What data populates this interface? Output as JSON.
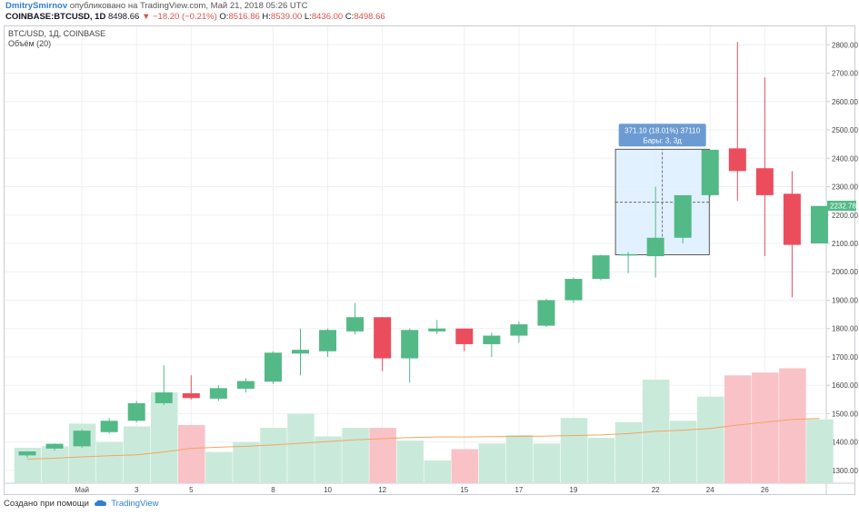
{
  "header": {
    "author": "DmitrySmirnov",
    "published": "опубликовано на TradingView.com, Май 21, 2018 05:26 UTC",
    "symbol": "COINBASE:BTCUSD, 1D",
    "price": "8498.66",
    "change": "−18.20 (−0.21%)",
    "o_label": "O:",
    "o_value": "8516.86",
    "h_label": "H:",
    "h_value": "8539.00",
    "l_label": "L:",
    "l_value": "8436.00",
    "c_label": "C:",
    "c_value": "8498.66"
  },
  "legend": {
    "title": "BTC/USD, 1Д, COINBASE",
    "volume": "Объём (20)"
  },
  "footer": {
    "created": "Создано при помощи",
    "brand": "TradingView",
    "logo_icon": "tradingview-cloud-icon"
  },
  "colors": {
    "up": "#53b987",
    "down": "#eb4d5c",
    "volume_up": "#c9eadb",
    "volume_down": "#f9c2c7",
    "ma": "#f4a460",
    "measure_fill": "#ddeeff",
    "measure_label": "#6b9bd2",
    "price_tag": "#53b987"
  },
  "measure": {
    "line1": "371.10 (18.01%) 37110",
    "line2": "Бары: 3, 3д"
  },
  "chart_data": {
    "type": "candlestick",
    "y_axis_ticks": [
      1300,
      1400,
      1500,
      1600,
      1700,
      1800,
      1900,
      2000,
      2100,
      2200,
      2300,
      2400,
      2500,
      2600,
      2700,
      2800
    ],
    "ylim": [
      1255,
      2865
    ],
    "x_tick_labels": [
      {
        "index": 2,
        "label": "Май"
      },
      {
        "index": 4,
        "label": "3"
      },
      {
        "index": 6,
        "label": "5"
      },
      {
        "index": 9,
        "label": "8"
      },
      {
        "index": 11,
        "label": "10"
      },
      {
        "index": 13,
        "label": "12"
      },
      {
        "index": 16,
        "label": "15"
      },
      {
        "index": 18,
        "label": "17"
      },
      {
        "index": 20,
        "label": "19"
      },
      {
        "index": 23,
        "label": "22"
      },
      {
        "index": 25,
        "label": "24"
      },
      {
        "index": 27,
        "label": "26"
      }
    ],
    "last_price_label": "2232.78",
    "last_price": 2232.78,
    "grid": true,
    "candles": [
      {
        "o": 1353,
        "h": 1368,
        "l": 1345,
        "c": 1367,
        "v": 1380
      },
      {
        "o": 1377,
        "h": 1395,
        "l": 1370,
        "c": 1394,
        "v": 1385
      },
      {
        "o": 1385,
        "h": 1445,
        "l": 1380,
        "c": 1440,
        "v": 1465
      },
      {
        "o": 1435,
        "h": 1485,
        "l": 1430,
        "c": 1475,
        "v": 1400
      },
      {
        "o": 1475,
        "h": 1545,
        "l": 1470,
        "c": 1537,
        "v": 1455
      },
      {
        "o": 1537,
        "h": 1670,
        "l": 1530,
        "c": 1575,
        "v": 1575
      },
      {
        "o": 1572,
        "h": 1635,
        "l": 1550,
        "c": 1555,
        "v": 1460
      },
      {
        "o": 1553,
        "h": 1600,
        "l": 1545,
        "c": 1590,
        "v": 1365
      },
      {
        "o": 1588,
        "h": 1625,
        "l": 1575,
        "c": 1615,
        "v": 1400
      },
      {
        "o": 1613,
        "h": 1720,
        "l": 1605,
        "c": 1715,
        "v": 1450
      },
      {
        "o": 1712,
        "h": 1800,
        "l": 1635,
        "c": 1725,
        "v": 1500
      },
      {
        "o": 1720,
        "h": 1800,
        "l": 1700,
        "c": 1795,
        "v": 1420
      },
      {
        "o": 1790,
        "h": 1890,
        "l": 1780,
        "c": 1840,
        "v": 1450
      },
      {
        "o": 1840,
        "h": 1840,
        "l": 1650,
        "c": 1695,
        "v": 1450
      },
      {
        "o": 1695,
        "h": 1800,
        "l": 1610,
        "c": 1795,
        "v": 1405
      },
      {
        "o": 1790,
        "h": 1830,
        "l": 1780,
        "c": 1800,
        "v": 1335
      },
      {
        "o": 1800,
        "h": 1800,
        "l": 1720,
        "c": 1745,
        "v": 1375
      },
      {
        "o": 1745,
        "h": 1785,
        "l": 1700,
        "c": 1775,
        "v": 1395
      },
      {
        "o": 1775,
        "h": 1825,
        "l": 1750,
        "c": 1815,
        "v": 1425
      },
      {
        "o": 1810,
        "h": 1905,
        "l": 1805,
        "c": 1900,
        "v": 1395
      },
      {
        "o": 1900,
        "h": 1980,
        "l": 1890,
        "c": 1975,
        "v": 1485
      },
      {
        "o": 1975,
        "h": 2060,
        "l": 1970,
        "c": 2058,
        "v": 1415
      },
      {
        "o": 2058,
        "h": 2070,
        "l": 1995,
        "c": 2062,
        "v": 1470
      },
      {
        "o": 2055,
        "h": 2300,
        "l": 1980,
        "c": 2120,
        "v": 1620
      },
      {
        "o": 2120,
        "h": 2270,
        "l": 2100,
        "c": 2270,
        "v": 1475
      },
      {
        "o": 2270,
        "h": 2430,
        "l": 2265,
        "c": 2430,
        "v": 1560
      },
      {
        "o": 2435,
        "h": 2810,
        "l": 2250,
        "c": 2355,
        "v": 1635
      },
      {
        "o": 2365,
        "h": 2685,
        "l": 2055,
        "c": 2270,
        "v": 1645
      },
      {
        "o": 2275,
        "h": 2355,
        "l": 1910,
        "c": 2095,
        "v": 1660
      },
      {
        "o": 2100,
        "h": 2232,
        "l": 2100,
        "c": 2232,
        "v": 1480
      }
    ],
    "ma_series": [
      1340,
      1343,
      1348,
      1352,
      1355,
      1365,
      1378,
      1382,
      1385,
      1390,
      1396,
      1402,
      1408,
      1412,
      1416,
      1418,
      1418,
      1419,
      1420,
      1421,
      1423,
      1425,
      1430,
      1438,
      1442,
      1448,
      1460,
      1470,
      1480,
      1483
    ]
  }
}
